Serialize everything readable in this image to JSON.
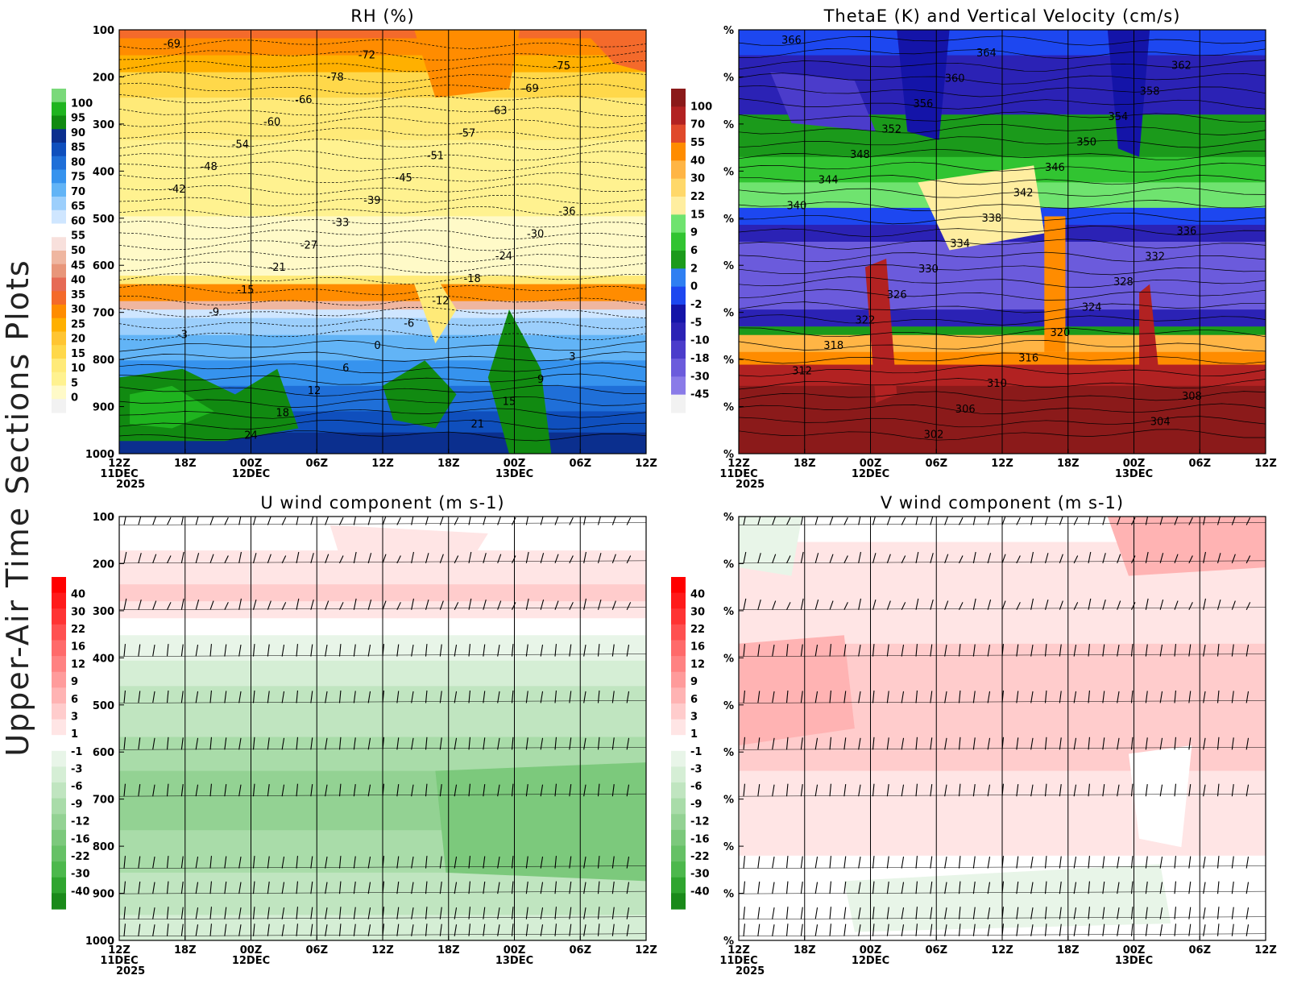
{
  "figure": {
    "side_title": "Upper-Air Time Sections Plots",
    "year_label": "2025"
  },
  "colors": {
    "rh_scale": [
      "#f2f2f2",
      "#fffac8",
      "#fff290",
      "#ffea78",
      "#ffd84a",
      "#ffc532",
      "#ffb000",
      "#ff8c00",
      "#f46a2b",
      "#e66a55",
      "#e8967a",
      "#efb6a0",
      "#f8e0dc",
      "#ffffff",
      "#cfe6ff",
      "#9ccffc",
      "#62b4f6",
      "#3693ee",
      "#1f6fd8",
      "#0f4fbd",
      "#0b2f8e",
      "#118a11",
      "#1fb41f",
      "#7ad97a"
    ],
    "thetae_scale": [
      "#f2f2f2",
      "#8a7be8",
      "#6b5bdc",
      "#4b3ccb",
      "#2b22b5",
      "#1414a8",
      "#1d47f0",
      "#2f7ff2",
      "#1b9a1b",
      "#31c431",
      "#6fe36f",
      "#ffeea0",
      "#ffd86a",
      "#ffb545",
      "#ff8c00",
      "#e0492b",
      "#b22222",
      "#8b1a1a"
    ],
    "wind_scale": [
      "#1a8a1a",
      "#2fa52f",
      "#4cb84c",
      "#66c166",
      "#7cc97c",
      "#93d293",
      "#a9dca9",
      "#c0e5c0",
      "#d5eed5",
      "#e8f5e8",
      "#ffffff",
      "#ffe5e5",
      "#ffcccc",
      "#ffb3b3",
      "#ff9b9b",
      "#ff8282",
      "#ff6a6a",
      "#ff5050",
      "#ff3333",
      "#ff1a1a",
      "#ff0000"
    ]
  },
  "chart_data": [
    {
      "type": "heatmap",
      "title": "RH (%)",
      "xlabel": "",
      "ylabel": "",
      "x_ticks": [
        "12Z",
        "18Z",
        "00Z",
        "06Z",
        "12Z",
        "18Z",
        "00Z",
        "06Z",
        "12Z"
      ],
      "date_labels": [
        {
          "tick": 0,
          "text": "11DEC"
        },
        {
          "tick": 2,
          "text": "12DEC"
        },
        {
          "tick": 6,
          "text": "13DEC"
        }
      ],
      "y_ticks": [
        "100",
        "200",
        "300",
        "400",
        "500",
        "600",
        "700",
        "800",
        "900",
        "1000"
      ],
      "ylim": [
        100,
        1000
      ],
      "colorbar_ticks": [
        "100",
        "95",
        "90",
        "85",
        "80",
        "75",
        "70",
        "65",
        "60",
        "55",
        "50",
        "45",
        "40",
        "35",
        "30",
        "25",
        "20",
        "15",
        "10",
        "5",
        "0"
      ],
      "contour_labels": [
        "-69",
        "-72",
        "-75",
        "-78",
        "-69",
        "-66",
        "-63",
        "-60",
        "-57",
        "-54",
        "-51",
        "-48",
        "-45",
        "-42",
        "-39",
        "-36",
        "-33",
        "-30",
        "-27",
        "-24",
        "-21",
        "-18",
        "-15",
        "-12",
        "-9",
        "-6",
        "-3",
        "0",
        "3",
        "6",
        "9",
        "12",
        "15",
        "18",
        "21",
        "24"
      ]
    },
    {
      "type": "heatmap",
      "title": "ThetaE (K) and Vertical Velocity (cm/s)",
      "xlabel": "",
      "ylabel": "",
      "x_ticks": [
        "12Z",
        "18Z",
        "00Z",
        "06Z",
        "12Z",
        "18Z",
        "00Z",
        "06Z",
        "12Z"
      ],
      "date_labels": [
        {
          "tick": 0,
          "text": "11DEC"
        },
        {
          "tick": 2,
          "text": "12DEC"
        },
        {
          "tick": 6,
          "text": "13DEC"
        }
      ],
      "y_ticks": [
        "%",
        "%",
        "%",
        "%",
        "%",
        "%",
        "%",
        "%",
        "%",
        "%"
      ],
      "colorbar_ticks": [
        "100",
        "70",
        "55",
        "40",
        "30",
        "22",
        "15",
        "9",
        "6",
        "2",
        "0",
        "-2",
        "-5",
        "-10",
        "-18",
        "-30",
        "-45"
      ],
      "contour_labels": [
        "366",
        "364",
        "362",
        "360",
        "358",
        "356",
        "354",
        "352",
        "350",
        "348",
        "346",
        "344",
        "342",
        "340",
        "338",
        "336",
        "334",
        "332",
        "330",
        "328",
        "326",
        "324",
        "322",
        "320",
        "318",
        "316",
        "312",
        "310",
        "308",
        "306",
        "304",
        "302"
      ]
    },
    {
      "type": "heatmap",
      "title": "U wind component (m s-1)",
      "xlabel": "",
      "ylabel": "",
      "x_ticks": [
        "12Z",
        "18Z",
        "00Z",
        "06Z",
        "12Z",
        "18Z",
        "00Z",
        "06Z",
        "12Z"
      ],
      "date_labels": [
        {
          "tick": 0,
          "text": "11DEC"
        },
        {
          "tick": 2,
          "text": "12DEC"
        },
        {
          "tick": 6,
          "text": "13DEC"
        }
      ],
      "y_ticks": [
        "100",
        "200",
        "300",
        "400",
        "500",
        "600",
        "700",
        "800",
        "900",
        "1000"
      ],
      "ylim": [
        100,
        1000
      ],
      "colorbar_ticks": [
        "40",
        "30",
        "22",
        "16",
        "12",
        "9",
        "6",
        "3",
        "1",
        "-1",
        "-3",
        "-6",
        "-9",
        "-12",
        "-16",
        "-22",
        "-30",
        "-40"
      ]
    },
    {
      "type": "heatmap",
      "title": "V wind component (m s-1)",
      "xlabel": "",
      "ylabel": "",
      "x_ticks": [
        "12Z",
        "18Z",
        "00Z",
        "06Z",
        "12Z",
        "18Z",
        "00Z",
        "06Z",
        "12Z"
      ],
      "date_labels": [
        {
          "tick": 0,
          "text": "11DEC"
        },
        {
          "tick": 2,
          "text": "12DEC"
        },
        {
          "tick": 6,
          "text": "13DEC"
        }
      ],
      "y_ticks": [
        "%",
        "%",
        "%",
        "%",
        "%",
        "%",
        "%",
        "%",
        "%",
        "%"
      ],
      "colorbar_ticks": [
        "40",
        "30",
        "22",
        "16",
        "12",
        "9",
        "6",
        "3",
        "1",
        "-1",
        "-3",
        "-6",
        "-9",
        "-12",
        "-16",
        "-22",
        "-30",
        "-40"
      ]
    }
  ]
}
